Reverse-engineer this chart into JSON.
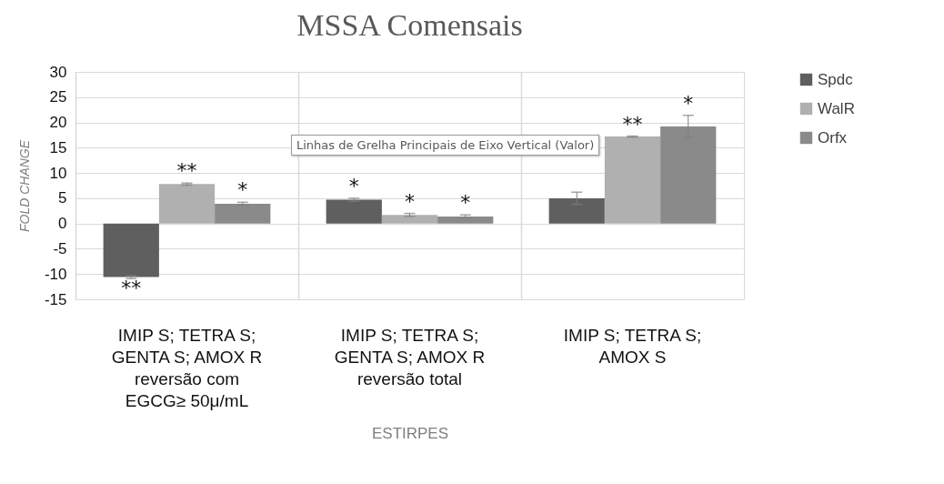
{
  "chart_data": {
    "type": "bar",
    "title": "MSSA Comensais",
    "xlabel": "ESTIRPES",
    "ylabel": "FOLD CHANGE",
    "categories": [
      "IMIP S; TETRA S; GENTA S; AMOX R reversão com EGCG≥ 50μ/mL",
      "IMIP S; TETRA S; GENTA S; AMOX R reversão total",
      "IMIP S; TETRA S; AMOX S"
    ],
    "series": [
      {
        "name": "Spdc",
        "color": "#5f5f5f",
        "values": [
          -10.6,
          4.7,
          5.0
        ],
        "errors": [
          0.3,
          0.3,
          1.2
        ],
        "value_labels": [
          "**",
          "*",
          null
        ]
      },
      {
        "name": "WalR",
        "color": "#b0b0b0",
        "values": [
          7.8,
          1.7,
          17.2
        ],
        "errors": [
          0.2,
          0.3,
          0.1
        ],
        "value_labels": [
          "**",
          "*",
          "**"
        ]
      },
      {
        "name": "Orfx",
        "color": "#8a8a8a",
        "values": [
          3.9,
          1.4,
          19.2
        ],
        "errors": [
          0.3,
          0.3,
          2.2
        ],
        "value_labels": [
          "*",
          "*",
          "*"
        ]
      }
    ],
    "ylim": [
      -15,
      30
    ],
    "yticks": [
      -15,
      -10,
      -5,
      0,
      5,
      10,
      15,
      20,
      25,
      30
    ],
    "grid": true,
    "legend": "right",
    "annotations": [
      "Linhas de Grelha Principais de Eixo Vertical (Valor)"
    ]
  }
}
